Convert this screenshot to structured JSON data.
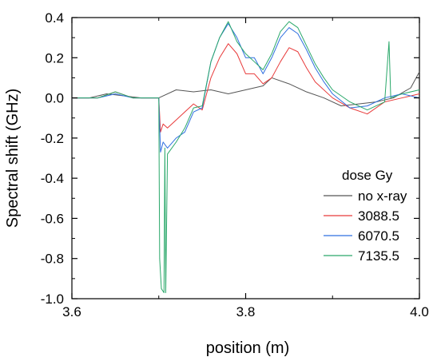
{
  "chart_data": {
    "type": "line",
    "title": "",
    "xlabel": "position (m)",
    "ylabel": "Spectral shift (GHz)",
    "xlim": [
      3.6,
      4.0
    ],
    "ylim": [
      -1.0,
      0.4
    ],
    "xticks": [
      3.6,
      3.8,
      4.0
    ],
    "xtick_labels": [
      "3.6",
      "3.8",
      "4.0"
    ],
    "yticks": [
      0.4,
      0.2,
      0.0,
      -0.2,
      -0.4,
      -0.6,
      -0.8,
      -1.0
    ],
    "ytick_labels": [
      "0.4",
      "0.2",
      "0.0",
      "-0.2",
      "-0.4",
      "-0.6",
      "-0.8",
      "-1.0"
    ],
    "grid": false,
    "legend": {
      "title": "dose Gy",
      "position": "lower-right"
    },
    "series": [
      {
        "name": "no x-ray",
        "color": "#555555",
        "points": [
          [
            3.6,
            0.0
          ],
          [
            3.62,
            0.0
          ],
          [
            3.64,
            0.02
          ],
          [
            3.66,
            0.01
          ],
          [
            3.68,
            0.0
          ],
          [
            3.7,
            0.0
          ],
          [
            3.72,
            0.04
          ],
          [
            3.74,
            0.03
          ],
          [
            3.76,
            0.04
          ],
          [
            3.78,
            0.02
          ],
          [
            3.8,
            0.04
          ],
          [
            3.82,
            0.06
          ],
          [
            3.83,
            0.1
          ],
          [
            3.85,
            0.07
          ],
          [
            3.87,
            0.03
          ],
          [
            3.89,
            0.0
          ],
          [
            3.91,
            -0.04
          ],
          [
            3.93,
            -0.03
          ],
          [
            3.95,
            -0.02
          ],
          [
            3.97,
            0.0
          ],
          [
            3.99,
            0.05
          ],
          [
            4.0,
            0.13
          ]
        ]
      },
      {
        "name": "3088.5",
        "color": "#e83a3a",
        "points": [
          [
            3.6,
            0.0
          ],
          [
            3.63,
            0.0
          ],
          [
            3.65,
            0.03
          ],
          [
            3.67,
            0.0
          ],
          [
            3.69,
            0.0
          ],
          [
            3.7,
            0.0
          ],
          [
            3.702,
            -0.17
          ],
          [
            3.705,
            -0.13
          ],
          [
            3.71,
            -0.15
          ],
          [
            3.72,
            -0.11
          ],
          [
            3.73,
            -0.07
          ],
          [
            3.74,
            -0.03
          ],
          [
            3.75,
            -0.06
          ],
          [
            3.76,
            0.1
          ],
          [
            3.77,
            0.2
          ],
          [
            3.78,
            0.27
          ],
          [
            3.79,
            0.22
          ],
          [
            3.8,
            0.12
          ],
          [
            3.81,
            0.12
          ],
          [
            3.82,
            0.07
          ],
          [
            3.83,
            0.1
          ],
          [
            3.84,
            0.18
          ],
          [
            3.85,
            0.25
          ],
          [
            3.86,
            0.23
          ],
          [
            3.87,
            0.15
          ],
          [
            3.88,
            0.08
          ],
          [
            3.9,
            0.0
          ],
          [
            3.92,
            -0.05
          ],
          [
            3.94,
            -0.08
          ],
          [
            3.96,
            -0.02
          ],
          [
            3.98,
            0.0
          ],
          [
            4.0,
            0.02
          ]
        ]
      },
      {
        "name": "6070.5",
        "color": "#2f6fe0",
        "points": [
          [
            3.6,
            0.0
          ],
          [
            3.63,
            0.0
          ],
          [
            3.65,
            0.02
          ],
          [
            3.67,
            0.0
          ],
          [
            3.69,
            0.0
          ],
          [
            3.7,
            0.0
          ],
          [
            3.702,
            -0.27
          ],
          [
            3.705,
            -0.22
          ],
          [
            3.71,
            -0.25
          ],
          [
            3.72,
            -0.2
          ],
          [
            3.73,
            -0.17
          ],
          [
            3.74,
            -0.07
          ],
          [
            3.75,
            -0.05
          ],
          [
            3.76,
            0.18
          ],
          [
            3.77,
            0.3
          ],
          [
            3.78,
            0.37
          ],
          [
            3.79,
            0.3
          ],
          [
            3.8,
            0.2
          ],
          [
            3.81,
            0.2
          ],
          [
            3.82,
            0.12
          ],
          [
            3.83,
            0.2
          ],
          [
            3.84,
            0.3
          ],
          [
            3.85,
            0.35
          ],
          [
            3.86,
            0.32
          ],
          [
            3.87,
            0.24
          ],
          [
            3.88,
            0.15
          ],
          [
            3.89,
            0.08
          ],
          [
            3.9,
            0.02
          ],
          [
            3.92,
            -0.05
          ],
          [
            3.94,
            -0.04
          ],
          [
            3.96,
            0.0
          ],
          [
            3.98,
            0.02
          ],
          [
            4.0,
            0.0
          ]
        ]
      },
      {
        "name": "7135.5",
        "color": "#2aa86a",
        "points": [
          [
            3.6,
            0.0
          ],
          [
            3.63,
            0.0
          ],
          [
            3.65,
            0.03
          ],
          [
            3.67,
            0.0
          ],
          [
            3.69,
            0.0
          ],
          [
            3.7,
            0.0
          ],
          [
            3.701,
            -0.8
          ],
          [
            3.703,
            -0.95
          ],
          [
            3.706,
            -0.97
          ],
          [
            3.707,
            -0.25
          ],
          [
            3.708,
            -0.97
          ],
          [
            3.71,
            -0.28
          ],
          [
            3.72,
            -0.22
          ],
          [
            3.73,
            -0.15
          ],
          [
            3.74,
            -0.05
          ],
          [
            3.75,
            -0.04
          ],
          [
            3.76,
            0.18
          ],
          [
            3.77,
            0.3
          ],
          [
            3.78,
            0.38
          ],
          [
            3.79,
            0.28
          ],
          [
            3.8,
            0.22
          ],
          [
            3.81,
            0.18
          ],
          [
            3.82,
            0.14
          ],
          [
            3.83,
            0.22
          ],
          [
            3.84,
            0.33
          ],
          [
            3.85,
            0.38
          ],
          [
            3.86,
            0.35
          ],
          [
            3.87,
            0.26
          ],
          [
            3.88,
            0.17
          ],
          [
            3.89,
            0.1
          ],
          [
            3.9,
            0.04
          ],
          [
            3.92,
            -0.02
          ],
          [
            3.94,
            -0.06
          ],
          [
            3.96,
            -0.02
          ],
          [
            3.965,
            0.28
          ],
          [
            3.967,
            0.0
          ],
          [
            3.98,
            0.02
          ],
          [
            4.0,
            0.04
          ]
        ]
      }
    ]
  }
}
